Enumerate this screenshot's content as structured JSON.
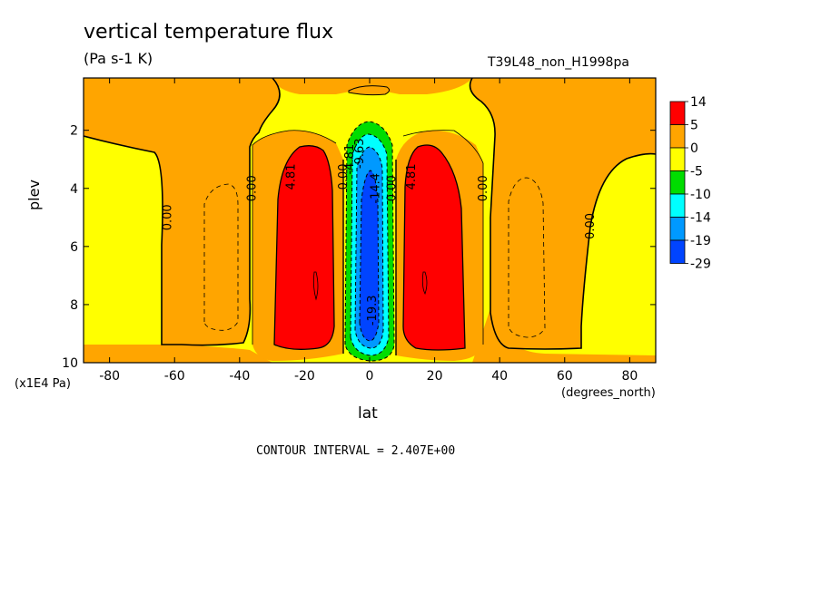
{
  "chart_data": {
    "type": "heatmap",
    "title": "vertical temperature flux",
    "units": "(Pa s-1 K)",
    "run_label": "T39L48_non_H1998pa",
    "xlabel": "lat",
    "x_units_label": "(degrees_north)",
    "ylabel": "plev",
    "y_units_label": "(x1E4 Pa)",
    "contour_interval_text": "CONTOUR INTERVAL = 2.407E+00",
    "xlim": [
      -88,
      88
    ],
    "ylim": [
      10,
      0.2
    ],
    "y_inverted": true,
    "x_ticks": [
      -80,
      -60,
      -40,
      -20,
      0,
      20,
      40,
      60,
      80
    ],
    "x_tick_labels": [
      "-80",
      "-60",
      "-40",
      "-20",
      "0",
      "20",
      "40",
      "60",
      "80"
    ],
    "y_ticks": [
      2,
      4,
      6,
      8,
      10
    ],
    "y_tick_labels": [
      "2",
      "4",
      "6",
      "8",
      "10"
    ],
    "colorbar": {
      "labels": [
        "14",
        "5",
        "0",
        "-5",
        "-10",
        "-14",
        "-19",
        "-29"
      ],
      "colors": [
        "#ff0000",
        "#ffa500",
        "#ffff00",
        "#00dd00",
        "#00ffff",
        "#0099ff",
        "#0044ff"
      ]
    },
    "contour_labels": [
      {
        "text": "0.00",
        "lat": -61,
        "plev": 5.0
      },
      {
        "text": "0.00",
        "lat": -35,
        "plev": 4.0
      },
      {
        "text": "4.81",
        "lat": -23,
        "plev": 3.6
      },
      {
        "text": "0.00",
        "lat": -7,
        "plev": 3.6
      },
      {
        "text": "-4.81",
        "lat": -5,
        "plev": 3.0
      },
      {
        "text": "-9.63",
        "lat": -2,
        "plev": 2.8
      },
      {
        "text": "-14.4",
        "lat": 3,
        "plev": 4.0
      },
      {
        "text": "0.00",
        "lat": 8,
        "plev": 4.0
      },
      {
        "text": "4.81",
        "lat": 14,
        "plev": 3.6
      },
      {
        "text": "0.00",
        "lat": 36,
        "plev": 4.0
      },
      {
        "text": "0.00",
        "lat": 69,
        "plev": 5.3
      },
      {
        "text": "-19.3",
        "lat": 2,
        "plev": 8.2
      }
    ]
  }
}
